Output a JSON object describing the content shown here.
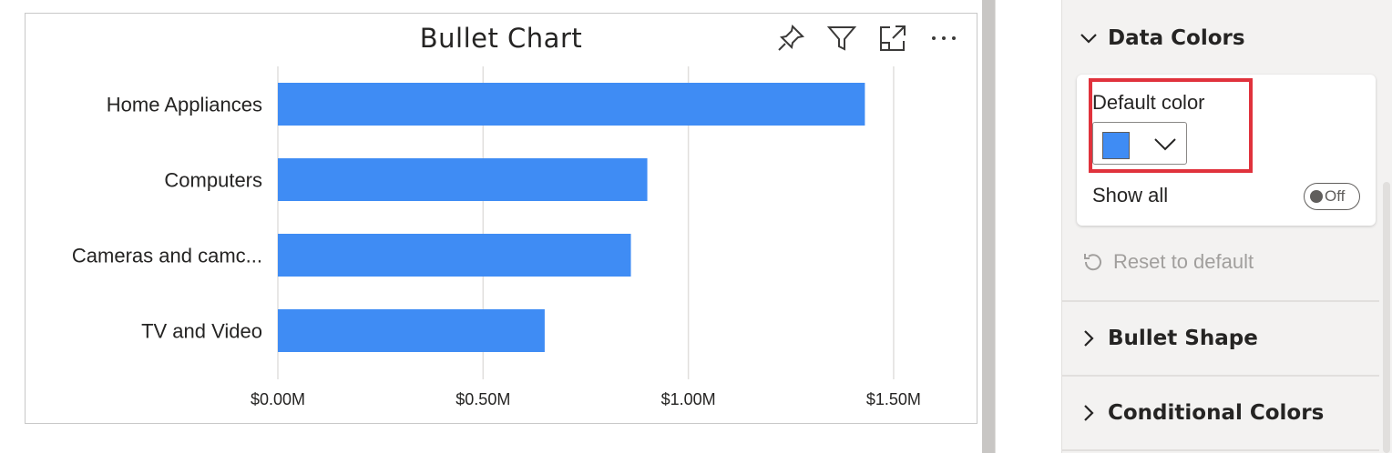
{
  "visual": {
    "title": "Bullet Chart",
    "header_icons": [
      "pin-icon",
      "filter-icon",
      "focus-mode-icon",
      "more-options-icon"
    ]
  },
  "chart_data": {
    "type": "bar",
    "orientation": "horizontal",
    "title": "Bullet Chart",
    "categories": [
      "Home Appliances",
      "Computers",
      "Cameras and camc...",
      "TV and Video"
    ],
    "values": [
      1.43,
      0.9,
      0.86,
      0.65
    ],
    "unit": "$M",
    "x_ticks": [
      "$0.00M",
      "$0.50M",
      "$1.00M",
      "$1.50M"
    ],
    "x_tick_values": [
      0,
      0.5,
      1.0,
      1.5
    ],
    "xlim": [
      0,
      1.62
    ],
    "grid": true,
    "bar_color": "#3f8cf4"
  },
  "format_pane": {
    "data_colors": {
      "label": "Data Colors",
      "expanded": true,
      "default_color_label": "Default color",
      "default_color_value": "#3f8cf4",
      "show_all_label": "Show all",
      "show_all_state": "Off",
      "reset_label": "Reset to default"
    },
    "sections": [
      {
        "label": "Bullet Shape",
        "expanded": false
      },
      {
        "label": "Conditional Colors",
        "expanded": false
      }
    ],
    "highlight_color": "#e0323c"
  }
}
